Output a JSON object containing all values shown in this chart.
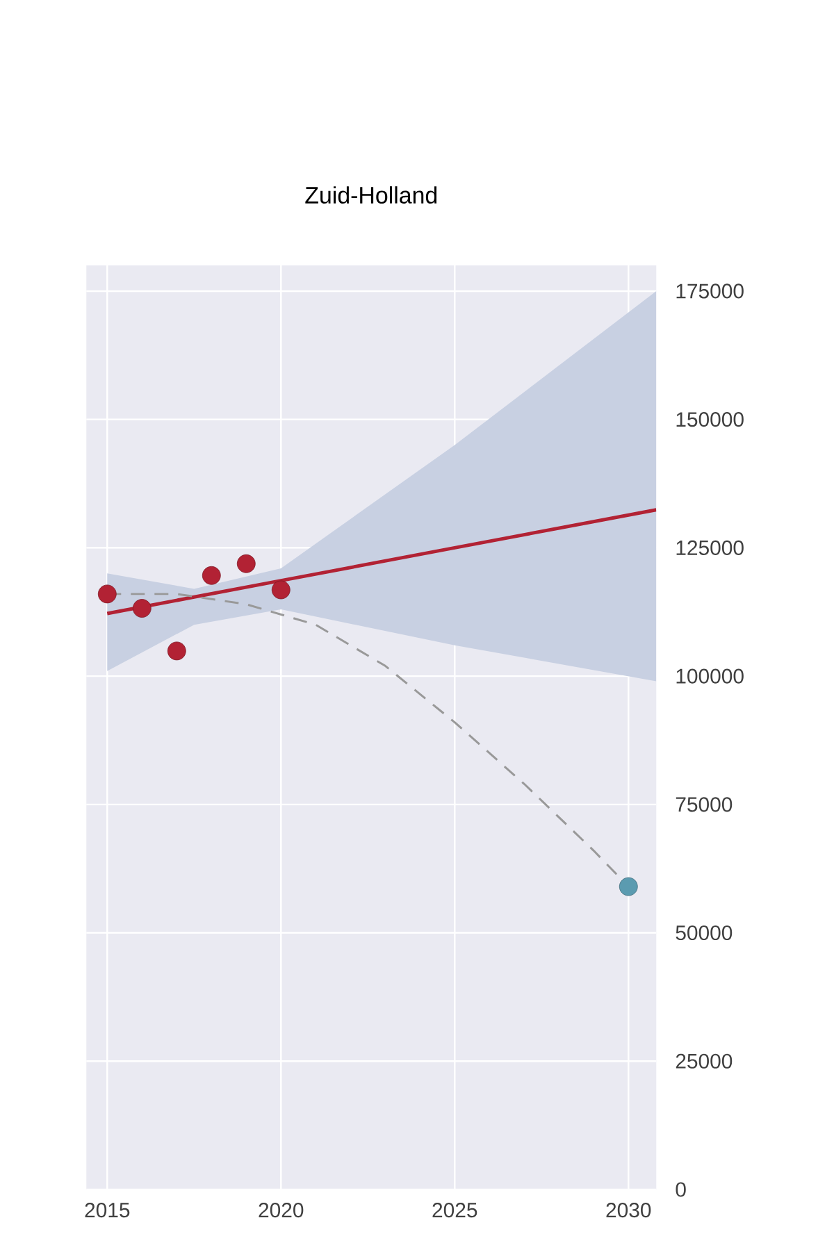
{
  "chart_data": {
    "type": "line",
    "title": "Zuid-Holland",
    "xlim": [
      2014.4,
      2030.8
    ],
    "xticks": [
      2015,
      2020,
      2025,
      2030
    ],
    "ylim": [
      0,
      180000
    ],
    "yticks": [
      0,
      25000,
      50000,
      75000,
      100000,
      125000,
      150000,
      175000
    ],
    "grid": true,
    "series": [
      {
        "color": "#b22234",
        "x": [
          2015,
          2017.5,
          2020,
          2025,
          2030.8
        ],
        "values": [
          112200,
          115400,
          118600,
          125000,
          132400
        ],
        "lower": [
          101000,
          110000,
          113000,
          106000,
          99000
        ],
        "upper": [
          120000,
          117000,
          121000,
          145000,
          175000
        ]
      },
      {
        "type": "line",
        "line_style": "dashed",
        "color": "#999999",
        "x": [
          2015,
          2017,
          2019,
          2021,
          2023,
          2025,
          2027,
          2029,
          2030
        ],
        "values": [
          116000,
          116000,
          114000,
          110000,
          102000,
          91000,
          79000,
          66000,
          59000
        ]
      },
      {
        "type": "scatter",
        "color": "#b22234",
        "x": [
          2015,
          2016,
          2017,
          2018,
          2019,
          2020
        ],
        "values": [
          116000,
          113200,
          104900,
          119600,
          121900,
          116800
        ]
      },
      {
        "type": "scatter",
        "color": "#5b9bb0",
        "x": [
          2030
        ],
        "values": [
          59000
        ]
      }
    ]
  }
}
